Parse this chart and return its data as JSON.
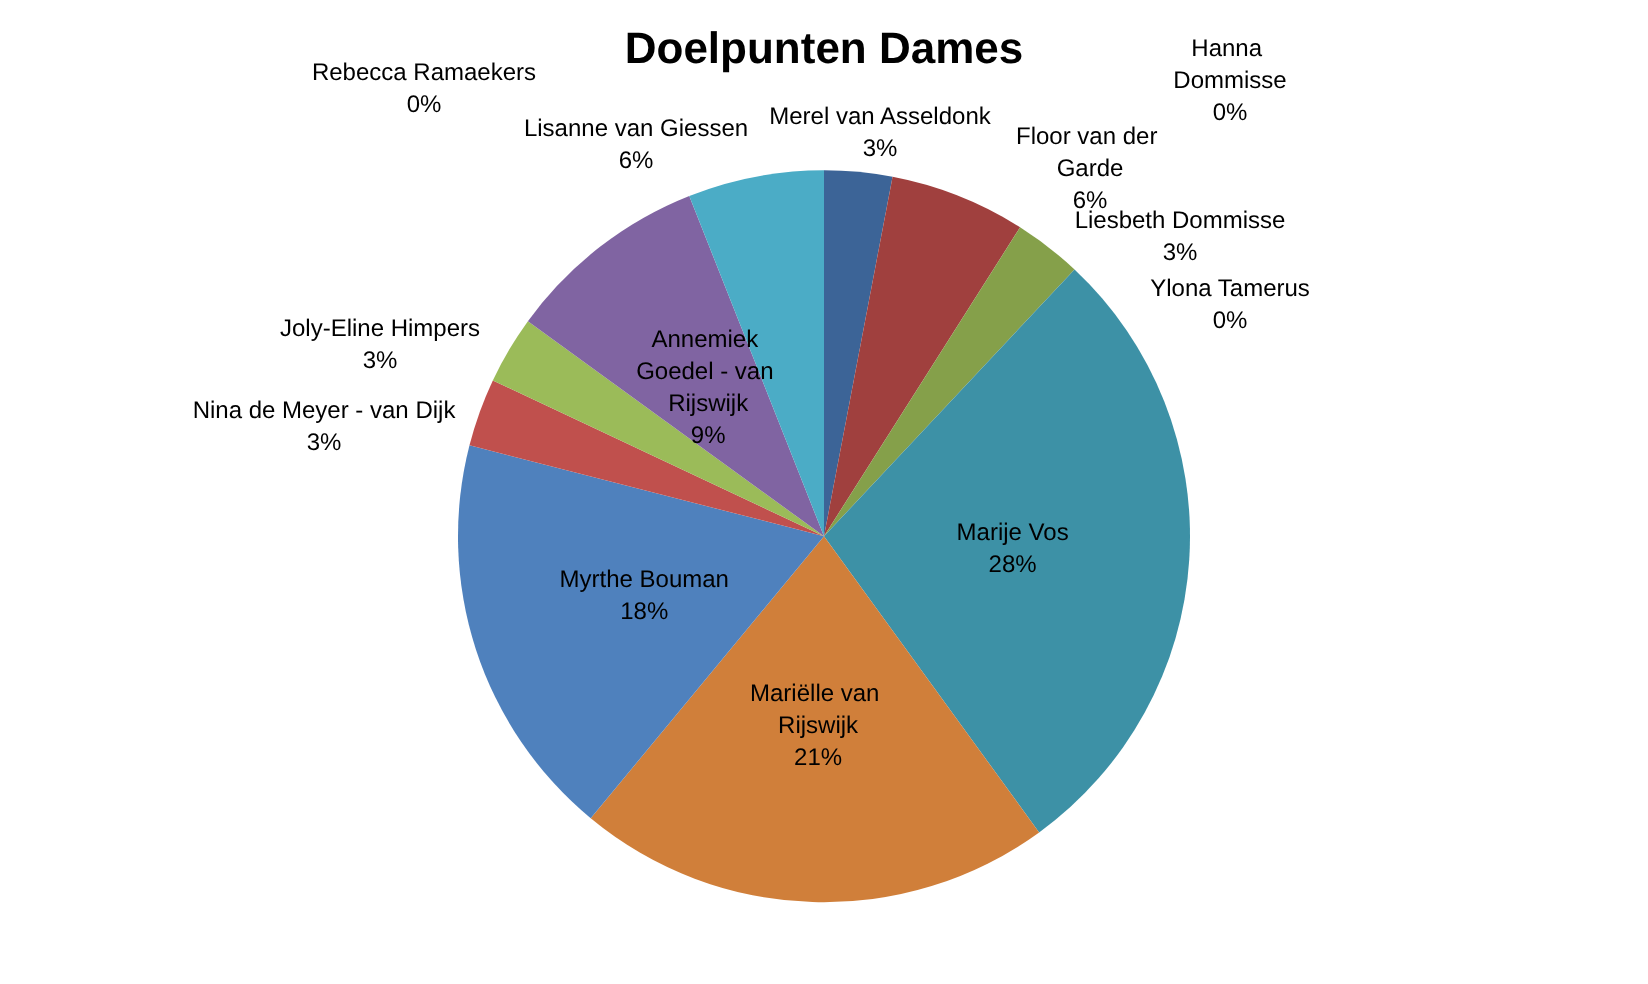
{
  "chart_data": {
    "type": "pie",
    "title": "Doelpunten Dames",
    "categories": [
      "Merel van Asseldonk",
      "Hanna Dommisse",
      "Floor van der Garde",
      "Liesbeth Dommisse",
      "Ylona Tamerus",
      "Marije Vos",
      "Mariëlle van Rijswijk",
      "Myrthe Bouman",
      "Nina de Meyer - van Dijk",
      "Joly-Eline Himpers",
      "Annemiek Goedel - van Rijswijk",
      "Lisanne van Giessen",
      "Rebecca Ramaekers"
    ],
    "values": [
      3,
      0,
      6,
      3,
      0,
      28,
      21,
      18,
      3,
      3,
      9,
      6,
      0
    ],
    "colors": [
      "#3c6497",
      "#4f81bd",
      "#a0403e",
      "#85a04a",
      "#8064a2",
      "#3d91a6",
      "#d07f3a",
      "#4f81bd",
      "#c0504d",
      "#9bbb59",
      "#8064a2",
      "#4bacc6",
      "#f79646"
    ],
    "value_labels": [
      "3%",
      "0%",
      "6%",
      "3%",
      "0%",
      "28%",
      "21%",
      "18%",
      "3%",
      "3%",
      "9%",
      "6%",
      "0%"
    ],
    "legend": false
  }
}
